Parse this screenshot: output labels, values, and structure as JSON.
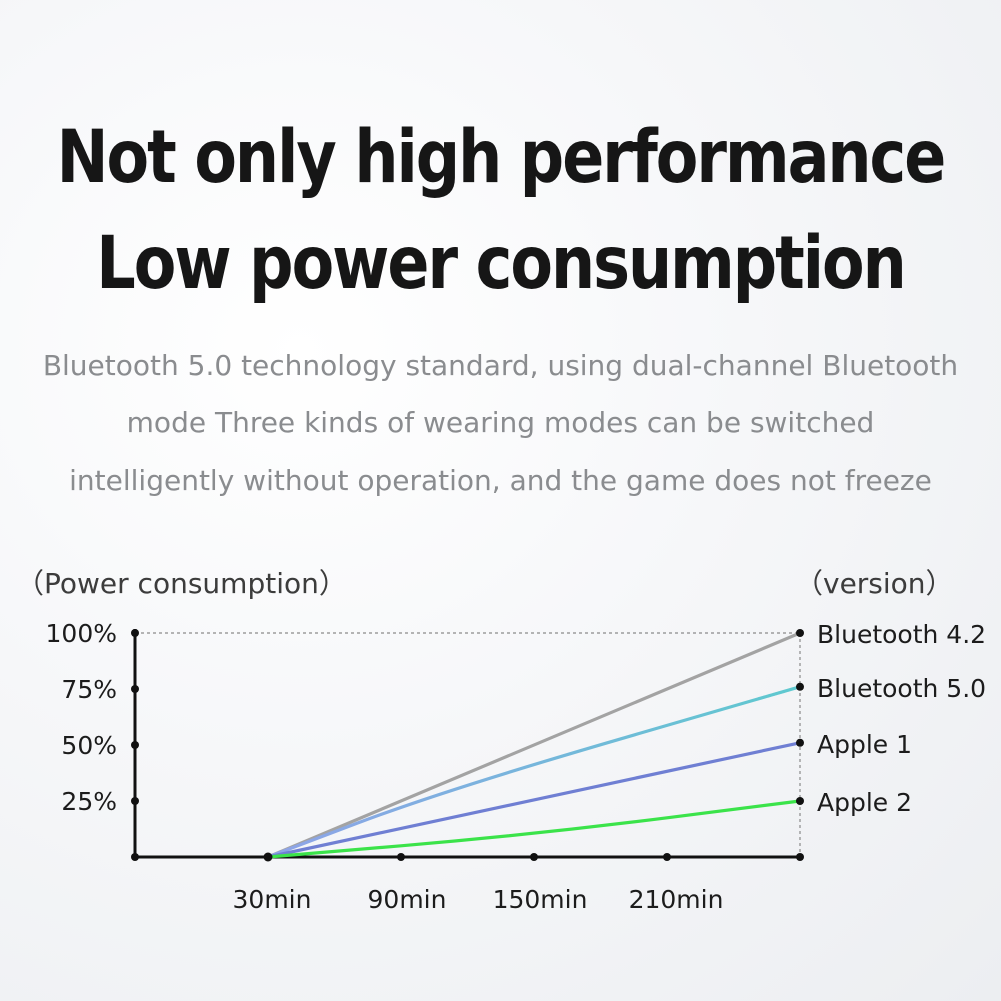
{
  "headline": {
    "line1": "Not only high performance",
    "line2": "Low power consumption"
  },
  "description": {
    "line1": "Bluetooth 5.0 technology standard, using dual-channel Bluetooth",
    "line2": "mode Three kinds of wearing modes can be switched",
    "line3": "intelligently without operation, and the game does not freeze"
  },
  "chart_data": {
    "type": "line",
    "ylabel": "（Power consumption）",
    "legend_title": "（version）",
    "x": [
      0,
      30,
      90,
      150,
      210,
      270
    ],
    "x_tick_labels": [
      "30min",
      "90min",
      "150min",
      "210min"
    ],
    "x_tick_values": [
      30,
      90,
      150,
      210
    ],
    "xlim": [
      -30,
      270
    ],
    "ylim": [
      0,
      100
    ],
    "y_ticks": [
      100,
      75,
      50,
      25
    ],
    "y_tick_labels": [
      "100%",
      "75%",
      "50%",
      "25%"
    ],
    "start_x": 30,
    "series": [
      {
        "name": "Bluetooth 4.2",
        "points": [
          [
            30,
            0
          ],
          [
            270,
            100
          ]
        ],
        "color": "#a3a3a3"
      },
      {
        "name": "Bluetooth 5.0",
        "points": [
          [
            30,
            0
          ],
          [
            110,
            30
          ],
          [
            270,
            76
          ]
        ],
        "color": "#6ccfc9"
      },
      {
        "name": "Apple 1",
        "points": [
          [
            30,
            0
          ],
          [
            270,
            51
          ]
        ],
        "color": "#6f7fd3"
      },
      {
        "name": "Apple 2",
        "points": [
          [
            30,
            0
          ],
          [
            150,
            10
          ],
          [
            270,
            25
          ]
        ],
        "color": "#3be34a"
      }
    ],
    "grid": false,
    "legend_position": "right"
  }
}
